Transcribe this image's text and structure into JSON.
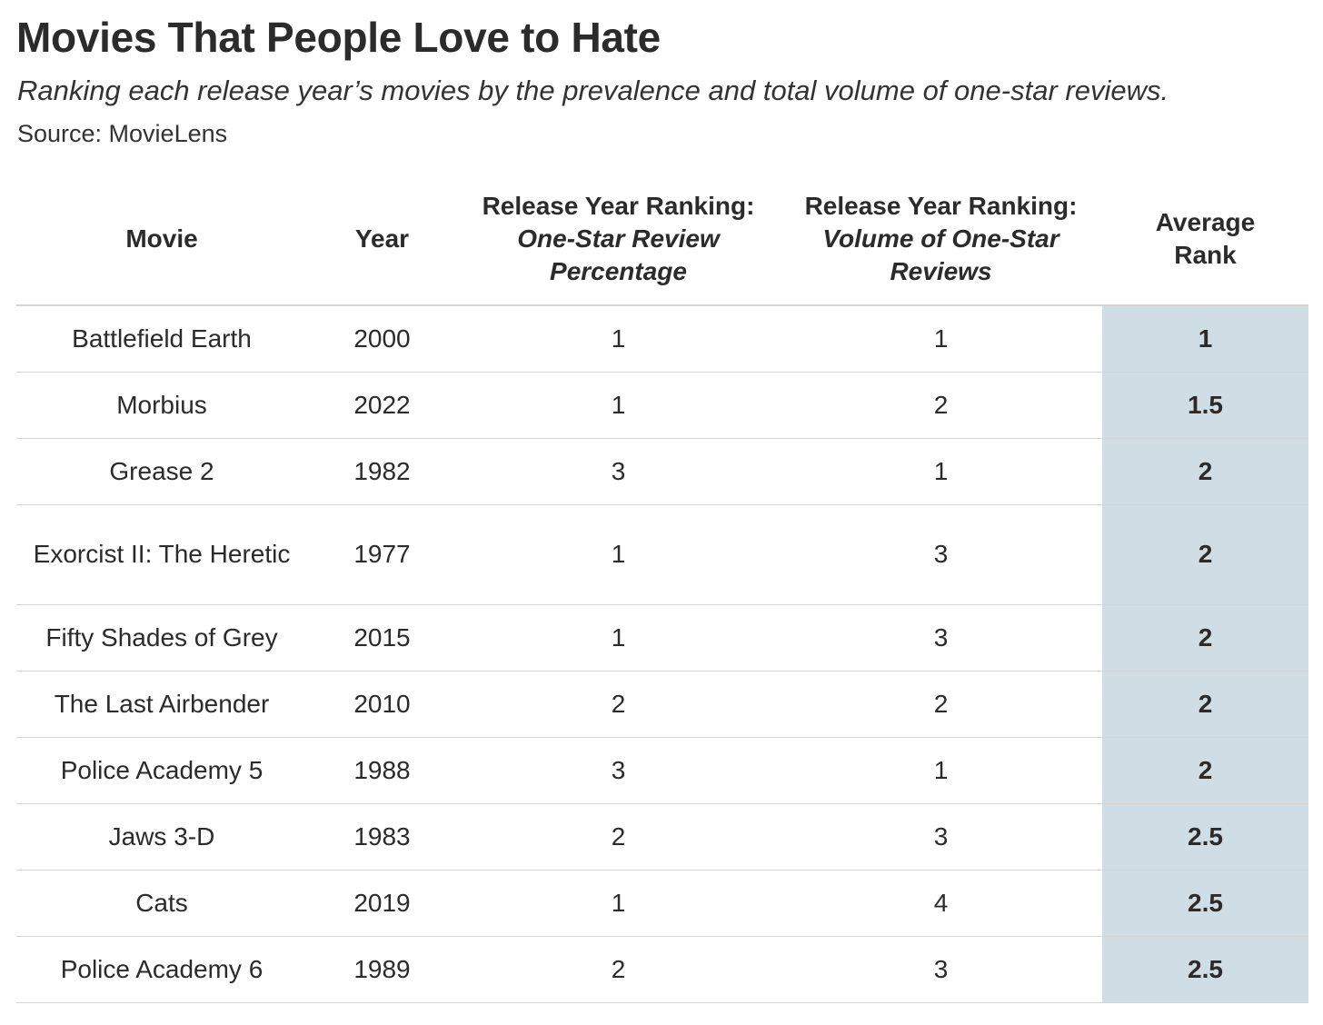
{
  "title": "Movies That People Love to Hate",
  "subtitle": "Ranking each release year’s movies by the prevalence and total volume of one-star reviews.",
  "source": "Source: MovieLens",
  "colors": {
    "highlight": "#d0dde4",
    "text": "#2b2b2b",
    "rule": "#d4d4d4"
  },
  "chart_data": {
    "type": "table",
    "title": "Movies That People Love to Hate",
    "columns": [
      {
        "line1": "Movie",
        "italic": ""
      },
      {
        "line1": "Year",
        "italic": ""
      },
      {
        "line1": "Release Year Ranking:",
        "italic": "One-Star Review Percentage"
      },
      {
        "line1": "Release Year Ranking:",
        "italic": "Volume of One-Star Reviews"
      },
      {
        "line1": "Average Rank",
        "italic": ""
      }
    ],
    "rows": [
      {
        "movie": "Battlefield Earth",
        "year": "2000",
        "pct_rank": "1",
        "vol_rank": "1",
        "avg_rank": "1"
      },
      {
        "movie": "Morbius",
        "year": "2022",
        "pct_rank": "1",
        "vol_rank": "2",
        "avg_rank": "1.5"
      },
      {
        "movie": "Grease 2",
        "year": "1982",
        "pct_rank": "3",
        "vol_rank": "1",
        "avg_rank": "2"
      },
      {
        "movie": "Exorcist II: The Heretic",
        "year": "1977",
        "pct_rank": "1",
        "vol_rank": "3",
        "avg_rank": "2"
      },
      {
        "movie": "Fifty Shades of Grey",
        "year": "2015",
        "pct_rank": "1",
        "vol_rank": "3",
        "avg_rank": "2"
      },
      {
        "movie": "The Last Airbender",
        "year": "2010",
        "pct_rank": "2",
        "vol_rank": "2",
        "avg_rank": "2"
      },
      {
        "movie": "Police Academy 5",
        "year": "1988",
        "pct_rank": "3",
        "vol_rank": "1",
        "avg_rank": "2"
      },
      {
        "movie": "Jaws 3-D",
        "year": "1983",
        "pct_rank": "2",
        "vol_rank": "3",
        "avg_rank": "2.5"
      },
      {
        "movie": "Cats",
        "year": "2019",
        "pct_rank": "1",
        "vol_rank": "4",
        "avg_rank": "2.5"
      },
      {
        "movie": "Police Academy 6",
        "year": "1989",
        "pct_rank": "2",
        "vol_rank": "3",
        "avg_rank": "2.5"
      }
    ]
  }
}
